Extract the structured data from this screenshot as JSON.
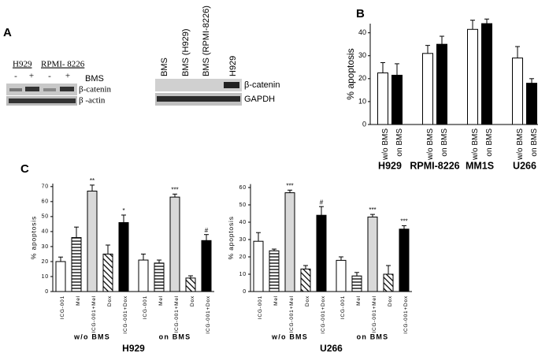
{
  "panels": {
    "labels": [
      "A",
      "B",
      "C"
    ],
    "blot1": {
      "cell_lines": [
        "H929",
        "RPMI- 8226"
      ],
      "treatment": [
        "-",
        "+",
        "-",
        "+"
      ],
      "treatment_label": "BMS",
      "bands": [
        "β-catenin",
        "β -actin"
      ]
    },
    "blot2": {
      "lanes": [
        "BMS",
        "BMS (H929)",
        "BMS (RPMI-8226)",
        "H929"
      ],
      "bands": [
        "β-catenin",
        "GAPDH"
      ]
    }
  },
  "chart_data": [
    {
      "type": "bar",
      "ylabel": "% apoptosis",
      "categories": [
        "H929",
        "RPMI-8226",
        "MM1S",
        "U266"
      ],
      "ylim": [
        0,
        44
      ],
      "yticks": [
        0,
        10,
        20,
        30,
        40
      ],
      "series": [
        {
          "name": "w/o BMS",
          "color": "#ffffff",
          "values": [
            22.5,
            31,
            41.5,
            29
          ],
          "errors": [
            4.5,
            3.5,
            4,
            5
          ]
        },
        {
          "name": "on BMS",
          "color": "#000000",
          "values": [
            21.5,
            35,
            44,
            18
          ],
          "errors": [
            5,
            3.5,
            2,
            2
          ]
        }
      ]
    },
    {
      "type": "bar",
      "title": "H929",
      "ylabel": "% apoptosis",
      "categories": [
        "w/o BMS",
        "on BMS"
      ],
      "ylim": [
        0,
        72
      ],
      "yticks": [
        0,
        10,
        20,
        30,
        40,
        50,
        60,
        70
      ],
      "series": [
        {
          "name": "ICG-001",
          "color": "#ffffff",
          "values": [
            20,
            21
          ],
          "errors": [
            3,
            4
          ]
        },
        {
          "name": "Mel",
          "color": "#ffffff",
          "pattern": "horizontal",
          "values": [
            36,
            19
          ],
          "errors": [
            7,
            2
          ]
        },
        {
          "name": "ICG-001+Mel",
          "color": "#d9d9d9",
          "values": [
            67,
            63
          ],
          "errors": [
            4,
            2
          ],
          "annotations": [
            "**",
            "***"
          ]
        },
        {
          "name": "Dox",
          "color": "#ffffff",
          "pattern": "diagonal",
          "values": [
            25,
            9
          ],
          "errors": [
            6,
            1.5
          ]
        },
        {
          "name": "ICG-001+Dox",
          "color": "#000000",
          "values": [
            46,
            34
          ],
          "errors": [
            5,
            4
          ],
          "annotations": [
            "*",
            "#"
          ]
        }
      ]
    },
    {
      "type": "bar",
      "title": "U266",
      "ylabel": "% apoptosis",
      "categories": [
        "w/o BMS",
        "on BMS"
      ],
      "ylim": [
        0,
        62
      ],
      "yticks": [
        0,
        10,
        20,
        30,
        40,
        50,
        60
      ],
      "series": [
        {
          "name": "ICG-001",
          "color": "#ffffff",
          "values": [
            29,
            18
          ],
          "errors": [
            5,
            2
          ]
        },
        {
          "name": "Mel",
          "color": "#ffffff",
          "pattern": "horizontal",
          "values": [
            23.5,
            9
          ],
          "errors": [
            1,
            2
          ]
        },
        {
          "name": "ICG-001+Mel",
          "color": "#d9d9d9",
          "values": [
            57,
            43
          ],
          "errors": [
            1.5,
            1.5
          ],
          "annotations": [
            "***",
            "***"
          ]
        },
        {
          "name": "Dox",
          "color": "#ffffff",
          "pattern": "diagonal",
          "values": [
            13,
            10
          ],
          "errors": [
            2,
            5
          ]
        },
        {
          "name": "ICG-001+Dox",
          "color": "#000000",
          "values": [
            44,
            36
          ],
          "errors": [
            5,
            2
          ],
          "annotations": [
            "#",
            "***"
          ]
        }
      ]
    }
  ]
}
